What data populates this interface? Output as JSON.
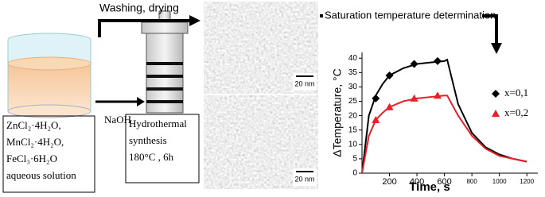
{
  "scheme": {
    "step1_label": "Washing, drying",
    "step2_label": "Saturation temperature determination",
    "reagent_label": "NaOH",
    "precursors": [
      "ZnCl₂·4H₂O,",
      "MnCl₂·4H₂O,",
      "FeCl₃·6H₂O",
      "aqueous solution"
    ],
    "synthesis": [
      "Hydrothermal",
      "synthesis",
      "180°C , 6h"
    ],
    "scale_bars": [
      "20 nm",
      "20 nm"
    ]
  },
  "chart_data": {
    "type": "line",
    "xlabel": "Time, s",
    "ylabel": "ΔTemperature, °C",
    "xlim": [
      0,
      1280
    ],
    "ylim": [
      0,
      42
    ],
    "xticks": [
      200,
      400,
      600,
      800,
      1000,
      1200
    ],
    "yticks": [
      0,
      5,
      10,
      15,
      20,
      25,
      30,
      35,
      40
    ],
    "series": [
      {
        "name": "x=0,1",
        "color": "#000000",
        "marker": "diamond",
        "x": [
          0,
          50,
          100,
          150,
          200,
          300,
          400,
          500,
          600,
          620,
          700,
          800,
          900,
          1000,
          1100,
          1200
        ],
        "values": [
          0,
          20,
          27,
          31,
          34,
          36.5,
          38,
          38.5,
          39,
          39.5,
          24,
          14,
          9,
          6.5,
          5,
          4
        ],
        "marker_x": [
          100,
          200,
          380,
          550
        ],
        "marker_values": [
          26,
          34,
          38,
          39
        ]
      },
      {
        "name": "x=0,2",
        "color": "#e8202a",
        "marker": "triangle",
        "x": [
          0,
          50,
          100,
          150,
          200,
          300,
          400,
          500,
          600,
          620,
          700,
          800,
          900,
          1000,
          1100,
          1200
        ],
        "values": [
          0,
          13,
          18.5,
          21,
          23,
          25,
          26,
          26.5,
          27,
          27,
          20,
          13,
          8.5,
          6,
          5,
          4
        ],
        "marker_x": [
          100,
          200,
          380,
          550
        ],
        "marker_values": [
          18.5,
          23,
          26,
          27
        ]
      }
    ]
  }
}
